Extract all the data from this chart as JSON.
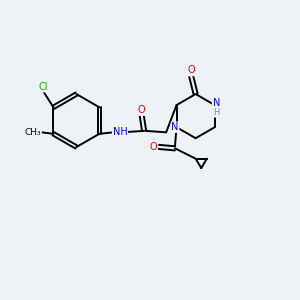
{
  "bg_color": "#eef2f7",
  "atom_colors": {
    "C": "#000000",
    "N": "#0000ee",
    "O": "#ee0000",
    "Cl": "#00bb00",
    "H": "#6a8fa0"
  },
  "bond_color": "#000000",
  "font_size": 7.0,
  "line_width": 1.4
}
